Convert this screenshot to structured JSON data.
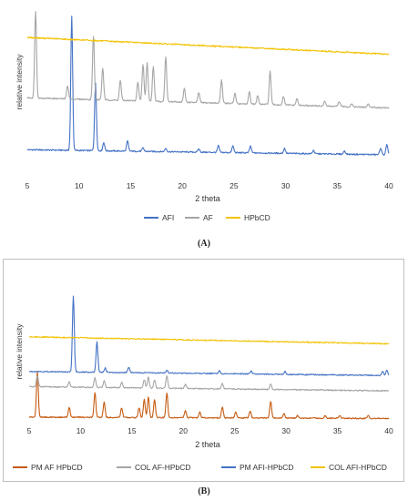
{
  "chart_data": [
    {
      "type": "line",
      "panel_label": "(A)",
      "xlabel": "2 theta",
      "ylabel": "relative intensity",
      "xlim": [
        5,
        40
      ],
      "x_ticks": [
        5,
        10,
        15,
        20,
        25,
        30,
        35,
        40
      ],
      "grid": false,
      "legend_position": "bottom",
      "series": [
        {
          "name": "AFI",
          "color": "#4472C4",
          "baseline": 0.15,
          "baseline_end": 0.12,
          "peaks": [
            [
              9.3,
              0.8
            ],
            [
              11.6,
              0.4
            ],
            [
              12.4,
              0.05
            ],
            [
              14.7,
              0.06
            ],
            [
              16.2,
              0.02
            ],
            [
              18.4,
              0.02
            ],
            [
              21.6,
              0.02
            ],
            [
              23.5,
              0.04
            ],
            [
              24.9,
              0.04
            ],
            [
              26.6,
              0.04
            ],
            [
              29.9,
              0.03
            ],
            [
              32.7,
              0.02
            ],
            [
              35.7,
              0.02
            ],
            [
              39.2,
              0.04
            ],
            [
              39.8,
              0.06
            ]
          ]
        },
        {
          "name": "AF",
          "color": "#A5A5A5",
          "baseline": 0.46,
          "baseline_end": 0.4,
          "peaks": [
            [
              5.8,
              0.52
            ],
            [
              8.9,
              0.08
            ],
            [
              11.4,
              0.38
            ],
            [
              12.3,
              0.19
            ],
            [
              14.0,
              0.12
            ],
            [
              15.7,
              0.11
            ],
            [
              16.2,
              0.22
            ],
            [
              16.6,
              0.23
            ],
            [
              17.2,
              0.21
            ],
            [
              18.4,
              0.27
            ],
            [
              20.2,
              0.08
            ],
            [
              21.6,
              0.06
            ],
            [
              23.8,
              0.14
            ],
            [
              25.1,
              0.06
            ],
            [
              26.5,
              0.07
            ],
            [
              27.3,
              0.05
            ],
            [
              28.5,
              0.2
            ],
            [
              29.8,
              0.05
            ],
            [
              31.1,
              0.04
            ],
            [
              33.8,
              0.03
            ],
            [
              35.2,
              0.03
            ],
            [
              36.4,
              0.02
            ],
            [
              38.0,
              0.02
            ]
          ]
        },
        {
          "name": "HPbCD",
          "color": "#F2C200",
          "baseline": 0.82,
          "baseline_end": 0.72,
          "peaks": []
        }
      ]
    },
    {
      "type": "line",
      "panel_label": "(B)",
      "xlabel": "2 theta",
      "ylabel": "relative intensity",
      "xlim": [
        5,
        40
      ],
      "x_ticks": [
        5,
        10,
        15,
        20,
        25,
        30,
        35,
        40
      ],
      "grid": false,
      "legend_position": "bottom",
      "series": [
        {
          "name": "PM AF HPbCD",
          "color": "#C55A11",
          "baseline": 0.04,
          "baseline_end": 0.03,
          "peaks": [
            [
              5.8,
              0.33
            ],
            [
              8.9,
              0.07
            ],
            [
              11.4,
              0.18
            ],
            [
              12.3,
              0.11
            ],
            [
              14.0,
              0.07
            ],
            [
              15.7,
              0.07
            ],
            [
              16.2,
              0.13
            ],
            [
              16.6,
              0.15
            ],
            [
              17.2,
              0.13
            ],
            [
              18.4,
              0.18
            ],
            [
              20.2,
              0.05
            ],
            [
              21.6,
              0.04
            ],
            [
              23.8,
              0.08
            ],
            [
              25.1,
              0.04
            ],
            [
              26.5,
              0.05
            ],
            [
              28.5,
              0.12
            ],
            [
              29.8,
              0.03
            ],
            [
              31.1,
              0.02
            ],
            [
              33.8,
              0.02
            ],
            [
              35.2,
              0.02
            ],
            [
              38.0,
              0.02
            ]
          ]
        },
        {
          "name": "COL AF-HPbCD",
          "color": "#A5A5A5",
          "baseline": 0.26,
          "baseline_end": 0.23,
          "peaks": [
            [
              5.8,
              0.08
            ],
            [
              8.9,
              0.04
            ],
            [
              11.4,
              0.07
            ],
            [
              12.3,
              0.05
            ],
            [
              14.0,
              0.04
            ],
            [
              16.2,
              0.06
            ],
            [
              16.6,
              0.08
            ],
            [
              17.2,
              0.06
            ],
            [
              18.4,
              0.09
            ],
            [
              20.2,
              0.03
            ],
            [
              23.8,
              0.04
            ],
            [
              28.5,
              0.04
            ]
          ]
        },
        {
          "name": "PM AFI-HPbCD",
          "color": "#4472C4",
          "baseline": 0.37,
          "baseline_end": 0.34,
          "peaks": [
            [
              9.3,
              0.55
            ],
            [
              11.6,
              0.22
            ],
            [
              12.4,
              0.03
            ],
            [
              14.7,
              0.04
            ],
            [
              18.4,
              0.02
            ],
            [
              23.5,
              0.02
            ],
            [
              26.6,
              0.02
            ],
            [
              29.9,
              0.02
            ],
            [
              39.4,
              0.03
            ],
            [
              39.8,
              0.04
            ]
          ]
        },
        {
          "name": "COL AFI-HPbCD",
          "color": "#F2C200",
          "baseline": 0.62,
          "baseline_end": 0.57,
          "peaks": []
        }
      ]
    }
  ]
}
